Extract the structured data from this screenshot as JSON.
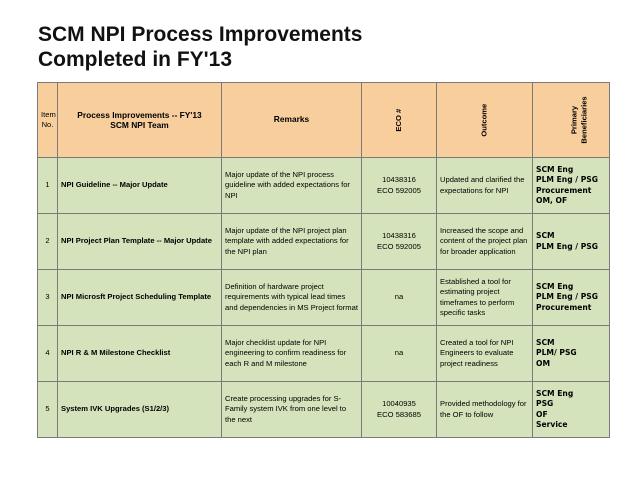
{
  "title": {
    "line1": "SCM NPI Process Improvements",
    "line2": "Completed in FY'13"
  },
  "header": {
    "item_line1": "Item",
    "item_line2": "No.",
    "process_line1": "Process Improvements -- FY'13",
    "process_line2": "SCM NPI Team",
    "remarks": "Remarks",
    "eco": "ECO #",
    "outcome": "Outcome",
    "beneficiaries_line1": "Primary",
    "beneficiaries_line2": "Beneficiaries"
  },
  "rows": [
    {
      "num": "1",
      "process": "NPI Guideline -- Major Update",
      "remarks": "Major update of the NPI process guideline with added expectations for NPI",
      "eco": [
        "10438316",
        "ECO 592005"
      ],
      "outcome": "Updated and clarified the expectations for NPI",
      "beneficiaries": [
        "SCM Eng",
        "PLM Eng / PSG",
        "Procurement",
        "OM, OF"
      ]
    },
    {
      "num": "2",
      "process": "NPI Project Plan Template -- Major Update",
      "remarks": "Major update of the NPI project plan template with added expectations for the NPI plan",
      "eco": [
        "10438316",
        "ECO 592005"
      ],
      "outcome": "Increased the scope and content of the project plan for broader application",
      "beneficiaries": [
        "SCM",
        "PLM Eng / PSG"
      ]
    },
    {
      "num": "3",
      "process": "NPI Microsft Project Scheduling Template",
      "remarks": "Definition of hardware project requirements with typical lead times and dependencies in MS Project format",
      "eco": [
        "na"
      ],
      "outcome": "Established a tool for estimating project timeframes to perform specific tasks",
      "beneficiaries": [
        "SCM Eng",
        "PLM Eng / PSG",
        "Procurement"
      ]
    },
    {
      "num": "4",
      "process": "NPI R & M Milestone Checklist",
      "remarks": "Major checklist update for NPI engineering to confirm readiness for each R and M milestone",
      "eco": [
        "na"
      ],
      "outcome": "Created a tool for NPI Engineers to evaluate project readiness",
      "beneficiaries": [
        "SCM",
        "PLM/ PSG",
        "OM"
      ]
    },
    {
      "num": "5",
      "process": "System IVK Upgrades (S1/2/3)",
      "remarks": "Create processing upgrades for S-Family system IVK from one level to the next",
      "eco": [
        "10040935",
        "ECO 583685"
      ],
      "outcome": "Provided methodology for the OF to follow",
      "beneficiaries": [
        "SCM Eng",
        "PSG",
        "OF",
        "Service"
      ]
    }
  ]
}
